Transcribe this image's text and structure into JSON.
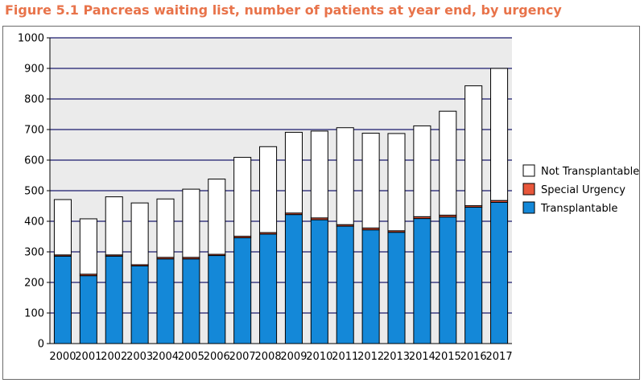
{
  "figure_title": "Figure 5.1 Pancreas waiting list, number of patients at year end, by urgency",
  "colors": {
    "title": "#e8734a",
    "plot_bg": "#ebebeb",
    "transplantable": "#1488d8",
    "special_urgency": "#e8573b",
    "not_transplantable": "#ffffff",
    "gridline": "#1b1b6e"
  },
  "chart_data": {
    "type": "bar",
    "stacked": true,
    "title": "Figure 5.1 Pancreas waiting list, number of patients at year end, by urgency",
    "xlabel": "",
    "ylabel": "",
    "ylim": [
      0,
      1000
    ],
    "yticks": [
      0,
      100,
      200,
      300,
      400,
      500,
      600,
      700,
      800,
      900,
      1000
    ],
    "grid": true,
    "legend_position": "right",
    "categories": [
      "2000",
      "2001",
      "2002",
      "2003",
      "2004",
      "2005",
      "2006",
      "2007",
      "2008",
      "2009",
      "2010",
      "2011",
      "2012",
      "2013",
      "2014",
      "2015",
      "2016",
      "2017"
    ],
    "series": [
      {
        "name": "Transplantable",
        "color_key": "transplantable",
        "values": [
          286,
          222,
          286,
          254,
          277,
          277,
          288,
          346,
          358,
          422,
          405,
          384,
          372,
          364,
          409,
          414,
          446,
          462
        ]
      },
      {
        "name": "Special Urgency",
        "color_key": "special_urgency",
        "values": [
          4,
          5,
          4,
          4,
          5,
          5,
          4,
          5,
          5,
          5,
          6,
          5,
          6,
          5,
          6,
          6,
          5,
          6
        ]
      },
      {
        "name": "Not Transplantable",
        "color_key": "not_transplantable",
        "values": [
          181,
          181,
          190,
          202,
          191,
          223,
          246,
          258,
          281,
          264,
          284,
          317,
          310,
          318,
          297,
          340,
          392,
          432
        ]
      }
    ],
    "legend_order": [
      "Not Transplantable",
      "Special Urgency",
      "Transplantable"
    ]
  }
}
